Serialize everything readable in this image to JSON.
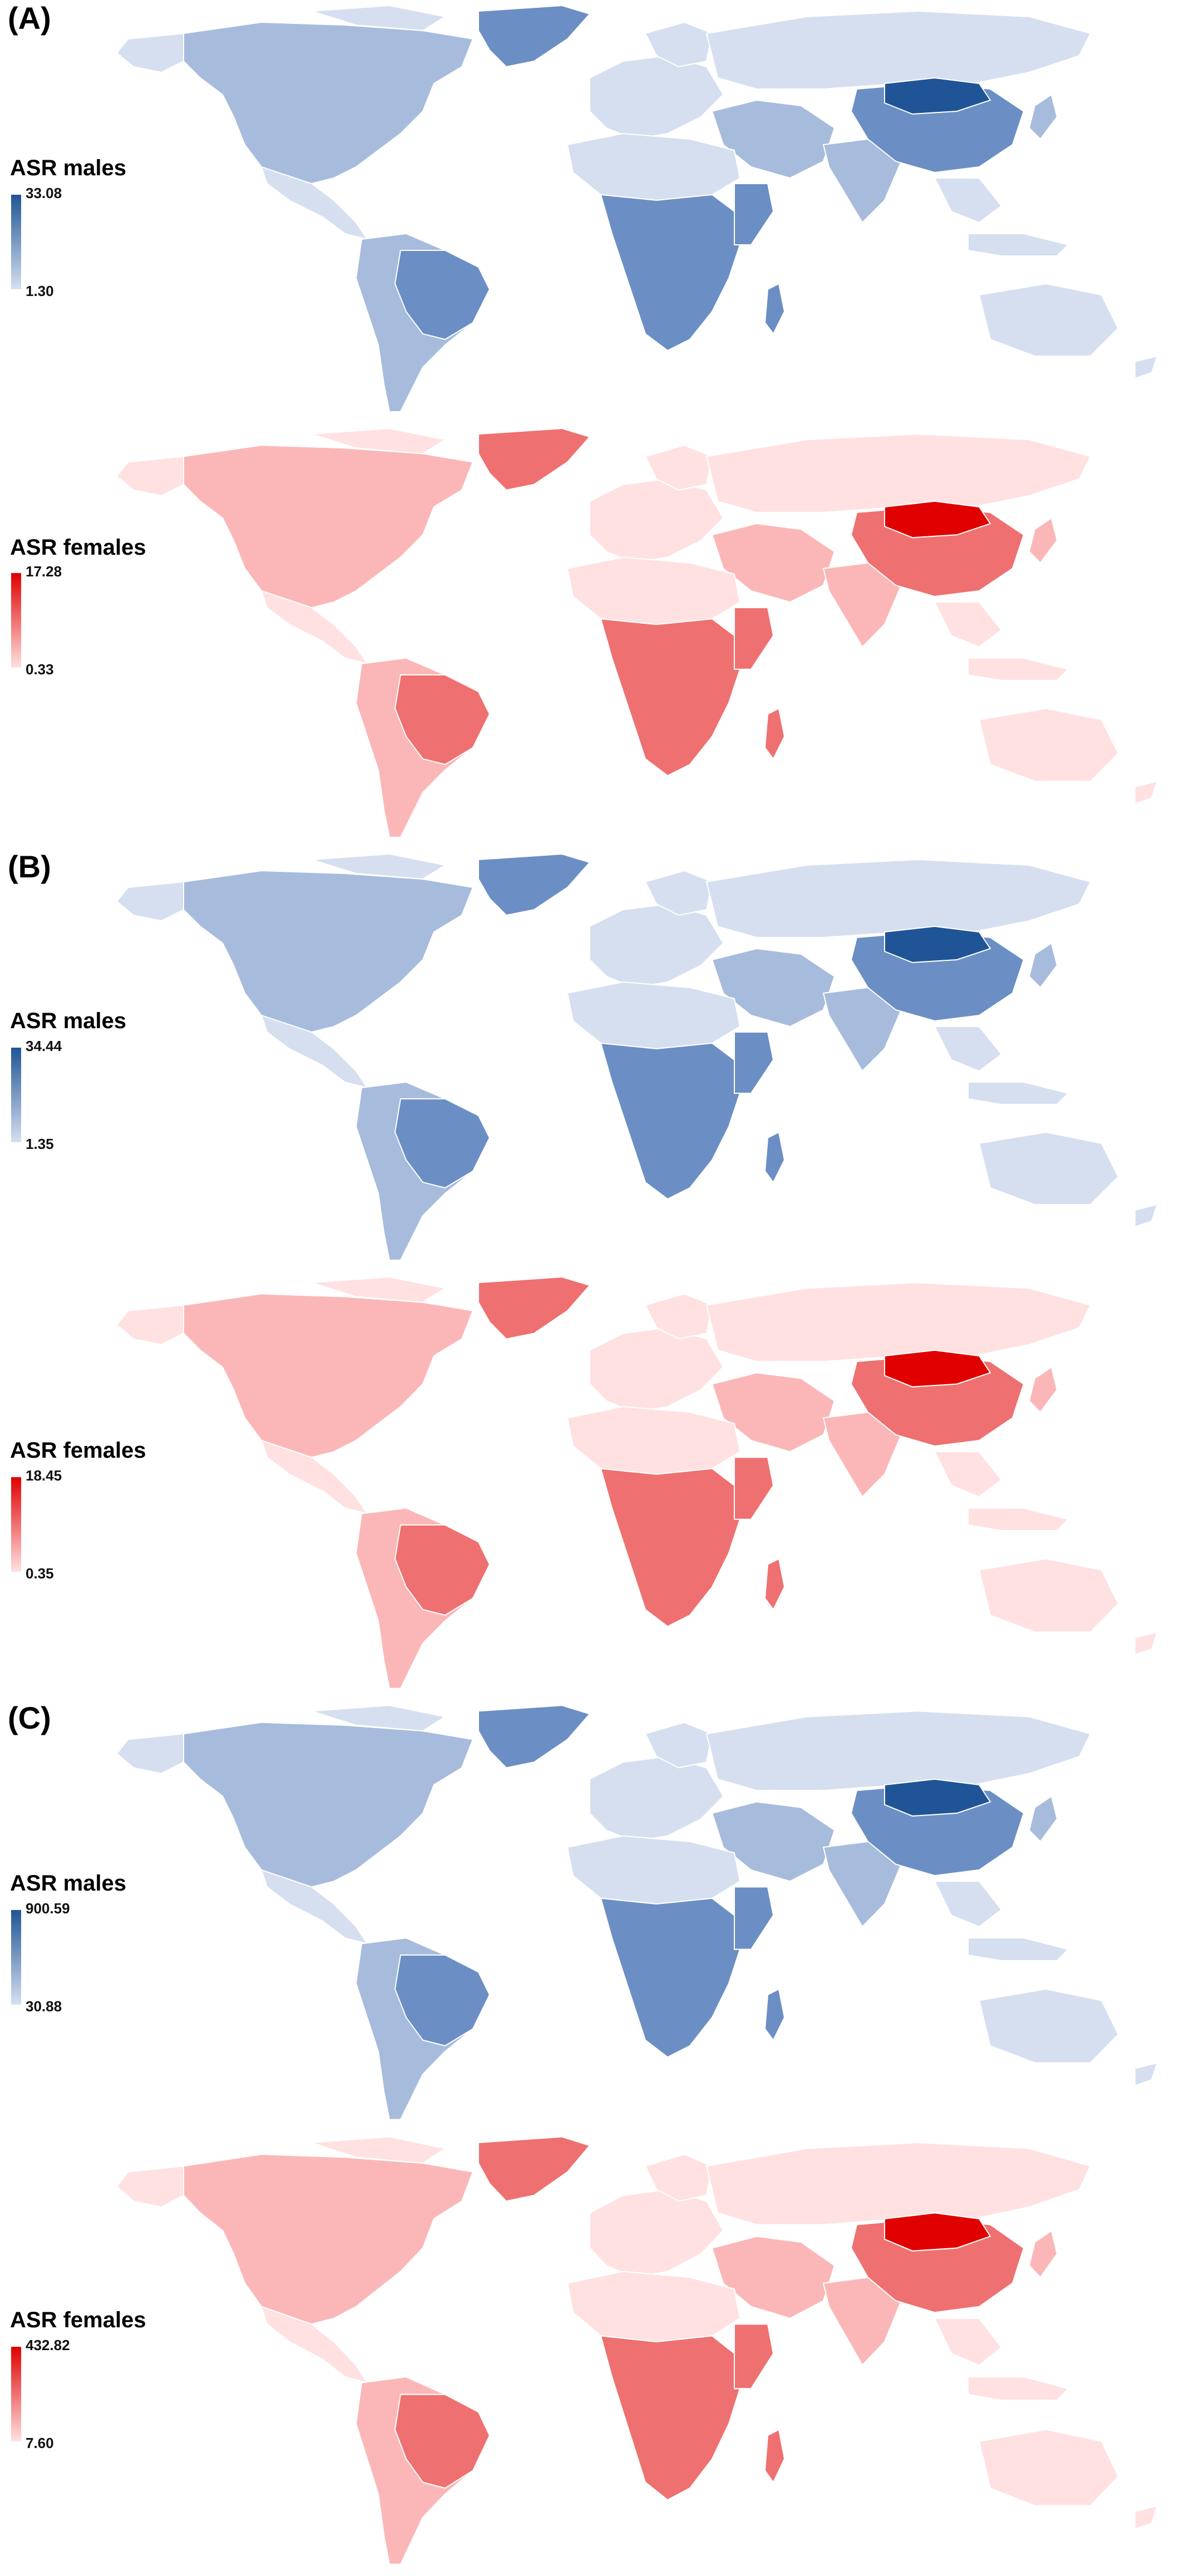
{
  "panels": [
    {
      "label": "(A)",
      "maps": [
        {
          "legend_title": "ASR males",
          "max": "33.08",
          "min": "1.30",
          "scheme": "blue"
        },
        {
          "legend_title": "ASR females",
          "max": "17.28",
          "min": "0.33",
          "scheme": "red"
        }
      ]
    },
    {
      "label": "(B)",
      "maps": [
        {
          "legend_title": "ASR males",
          "max": "34.44",
          "min": "1.35",
          "scheme": "blue"
        },
        {
          "legend_title": "ASR females",
          "max": "18.45",
          "min": "0.35",
          "scheme": "red"
        }
      ]
    },
    {
      "label": "(C)",
      "maps": [
        {
          "legend_title": "ASR males",
          "max": "900.59",
          "min": "30.88",
          "scheme": "blue"
        },
        {
          "legend_title": "ASR females",
          "max": "432.82",
          "min": "7.60",
          "scheme": "red"
        }
      ]
    }
  ],
  "colors": {
    "blue_low": "#d5dff0",
    "blue_mid": "#a7bcdc",
    "blue_high": "#6b8fc4",
    "blue_max": "#1f5596",
    "red_low": "#ffe1e1",
    "red_mid": "#fbb7b7",
    "red_high": "#ef7070",
    "red_max": "#e00000",
    "border": "#ffffff"
  }
}
